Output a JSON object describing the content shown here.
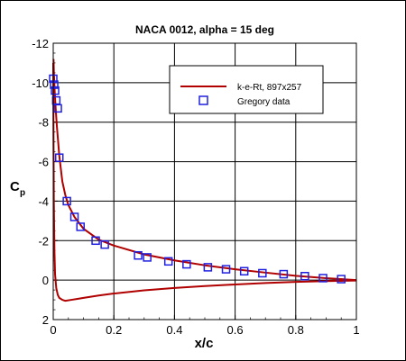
{
  "chart_data": {
    "type": "line",
    "title": "NACA 0012, alpha = 15 deg",
    "xlabel": "x/c",
    "ylabel": "C",
    "ylabel_subscript": "p",
    "xlim": [
      0,
      1
    ],
    "ylim": [
      2,
      -12
    ],
    "y_axis_inverted": true,
    "grid": true,
    "legend_position": "top-right",
    "x_ticks": [
      "0",
      "0.2",
      "0.4",
      "0.6",
      "0.8",
      "1"
    ],
    "y_ticks": [
      "-12",
      "-10",
      "-8",
      "-6",
      "-4",
      "-2",
      "0",
      "2"
    ],
    "series": [
      {
        "name": "k-e-Rt, 897x257",
        "style": "line",
        "color": "#b00000",
        "parts": [
          {
            "label": "upper surface",
            "x": [
              0.001,
              0.002,
              0.003,
              0.005,
              0.008,
              0.012,
              0.02,
              0.03,
              0.04,
              0.05,
              0.07,
              0.1,
              0.15,
              0.2,
              0.3,
              0.4,
              0.5,
              0.6,
              0.7,
              0.8,
              0.9,
              1.0
            ],
            "y": [
              -11.2,
              -10.6,
              -10.2,
              -9.5,
              -8.7,
              -7.8,
              -6.3,
              -5.0,
              -4.3,
              -3.8,
              -3.2,
              -2.6,
              -2.05,
              -1.75,
              -1.3,
              -1.0,
              -0.75,
              -0.55,
              -0.38,
              -0.22,
              -0.1,
              0.0
            ]
          },
          {
            "label": "lower surface",
            "x": [
              0.0,
              0.001,
              0.002,
              0.004,
              0.006,
              0.01,
              0.015,
              0.02,
              0.03,
              0.04,
              0.06,
              0.08,
              0.1,
              0.15,
              0.2,
              0.3,
              0.4,
              0.5,
              0.6,
              0.7,
              0.8,
              0.9,
              1.0
            ],
            "y": [
              -11.0,
              -7.0,
              -4.0,
              -1.5,
              -0.3,
              0.4,
              0.75,
              0.9,
              1.0,
              1.05,
              1.0,
              0.95,
              0.9,
              0.78,
              0.68,
              0.52,
              0.4,
              0.3,
              0.22,
              0.15,
              0.09,
              0.05,
              0.02
            ]
          }
        ]
      },
      {
        "name": "Gregory data",
        "style": "marker",
        "marker": "square",
        "color": "#2020e0",
        "x": [
          0.0,
          0.003,
          0.006,
          0.01,
          0.015,
          0.02,
          0.045,
          0.07,
          0.09,
          0.14,
          0.17,
          0.28,
          0.31,
          0.38,
          0.44,
          0.51,
          0.57,
          0.63,
          0.69,
          0.76,
          0.83,
          0.89,
          0.95
        ],
        "y": [
          -10.2,
          -9.9,
          -9.6,
          -9.1,
          -8.7,
          -6.2,
          -4.0,
          -3.2,
          -2.7,
          -2.0,
          -1.8,
          -1.25,
          -1.15,
          -0.95,
          -0.8,
          -0.65,
          -0.55,
          -0.45,
          -0.35,
          -0.3,
          -0.2,
          -0.1,
          -0.05
        ]
      }
    ]
  }
}
